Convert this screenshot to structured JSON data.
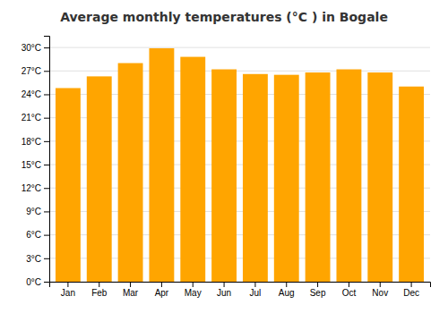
{
  "chart_data": {
    "type": "bar",
    "title": "Average monthly temperatures (°C ) in Bogale",
    "categories": [
      "Jan",
      "Feb",
      "Mar",
      "Apr",
      "May",
      "Jun",
      "Jul",
      "Aug",
      "Sep",
      "Oct",
      "Nov",
      "Dec"
    ],
    "values": [
      24.8,
      26.3,
      28.0,
      29.9,
      28.8,
      27.2,
      26.6,
      26.5,
      26.8,
      27.2,
      26.8,
      25.0
    ],
    "color": "#FFA500",
    "ylim": [
      0,
      31.5
    ],
    "yticks": [
      {
        "value": 0,
        "label": "0°C"
      },
      {
        "value": 3,
        "label": "3°C"
      },
      {
        "value": 6,
        "label": "6°C"
      },
      {
        "value": 9,
        "label": "9°C"
      },
      {
        "value": 12,
        "label": "12°C"
      },
      {
        "value": 15,
        "label": "15°C"
      },
      {
        "value": 18,
        "label": "18°C"
      },
      {
        "value": 21,
        "label": "21°C"
      },
      {
        "value": 24,
        "label": "24°C"
      },
      {
        "value": 27,
        "label": "27°C"
      },
      {
        "value": 30,
        "label": "30°C"
      }
    ],
    "grid": true
  }
}
